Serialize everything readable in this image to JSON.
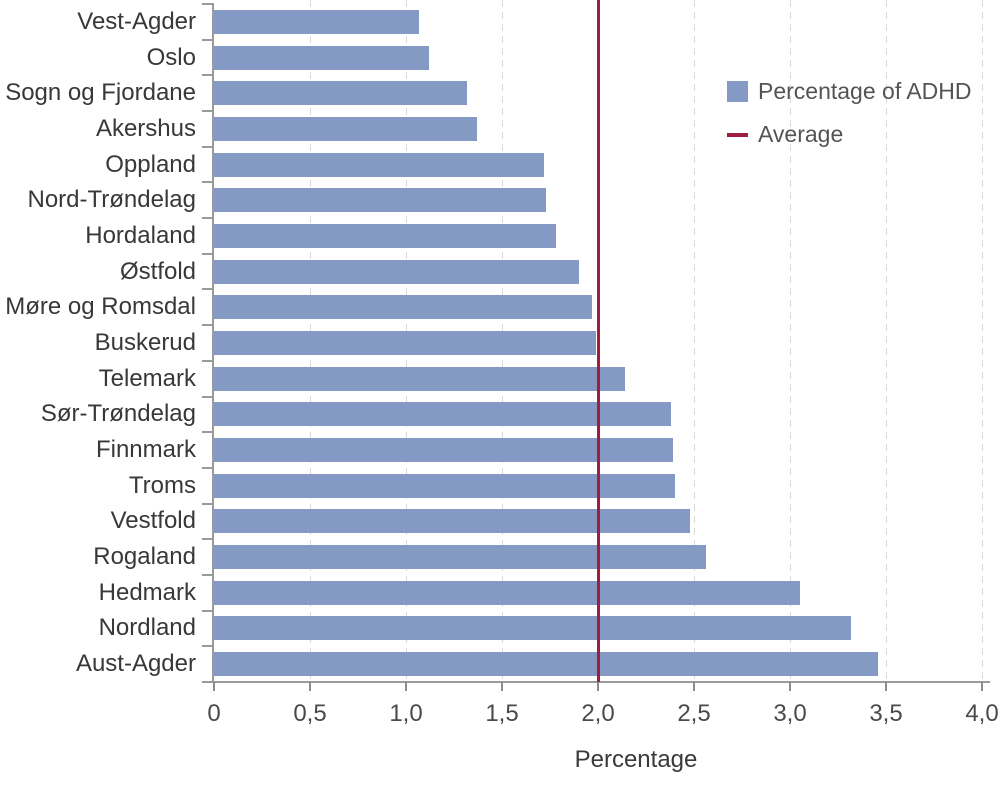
{
  "chart_data": {
    "type": "bar",
    "orientation": "horizontal",
    "title": "",
    "xlabel": "Percentage",
    "ylabel": "",
    "xlim": [
      0,
      4
    ],
    "grid": {
      "show": true,
      "style": "dashed",
      "interval": 0.5
    },
    "categories": [
      "Vest-Agder",
      "Oslo",
      "Sogn og Fjordane",
      "Akershus",
      "Oppland",
      "Nord-Trøndelag",
      "Hordaland",
      "Østfold",
      "Møre og Romsdal",
      "Buskerud",
      "Telemark",
      "Sør-Trøndelag",
      "Finnmark",
      "Troms",
      "Vestfold",
      "Rogaland",
      "Hedmark",
      "Nordland",
      "Aust-Agder"
    ],
    "series": [
      {
        "name": "Percentage of ADHD",
        "values": [
          1.07,
          1.12,
          1.32,
          1.37,
          1.72,
          1.73,
          1.78,
          1.9,
          1.97,
          1.99,
          2.14,
          2.38,
          2.39,
          2.4,
          2.48,
          2.56,
          3.05,
          3.32,
          3.46
        ]
      }
    ],
    "reference_line": {
      "name": "Average",
      "value": 2.0
    },
    "xticks": [
      {
        "v": 0,
        "label": "0"
      },
      {
        "v": 0.5,
        "label": "0,5"
      },
      {
        "v": 1,
        "label": "1,0"
      },
      {
        "v": 1.5,
        "label": "1,5"
      },
      {
        "v": 2,
        "label": "2,0"
      },
      {
        "v": 2.5,
        "label": "2,5"
      },
      {
        "v": 3,
        "label": "3,0"
      },
      {
        "v": 3.5,
        "label": "3,5"
      },
      {
        "v": 4,
        "label": "4,0"
      }
    ],
    "legend": {
      "position": "top-right",
      "items": [
        {
          "label": "Percentage of ADHD",
          "marker": "square"
        },
        {
          "label": "Average",
          "marker": "line"
        }
      ]
    },
    "colors": {
      "bar": "#8499C4",
      "average": "#A21C40",
      "grid": "#D9D9D9",
      "axis": "#9A9A9A",
      "category_text": "#383838",
      "tick_text": "#4A4A4A",
      "legend_text": "#545454"
    }
  }
}
